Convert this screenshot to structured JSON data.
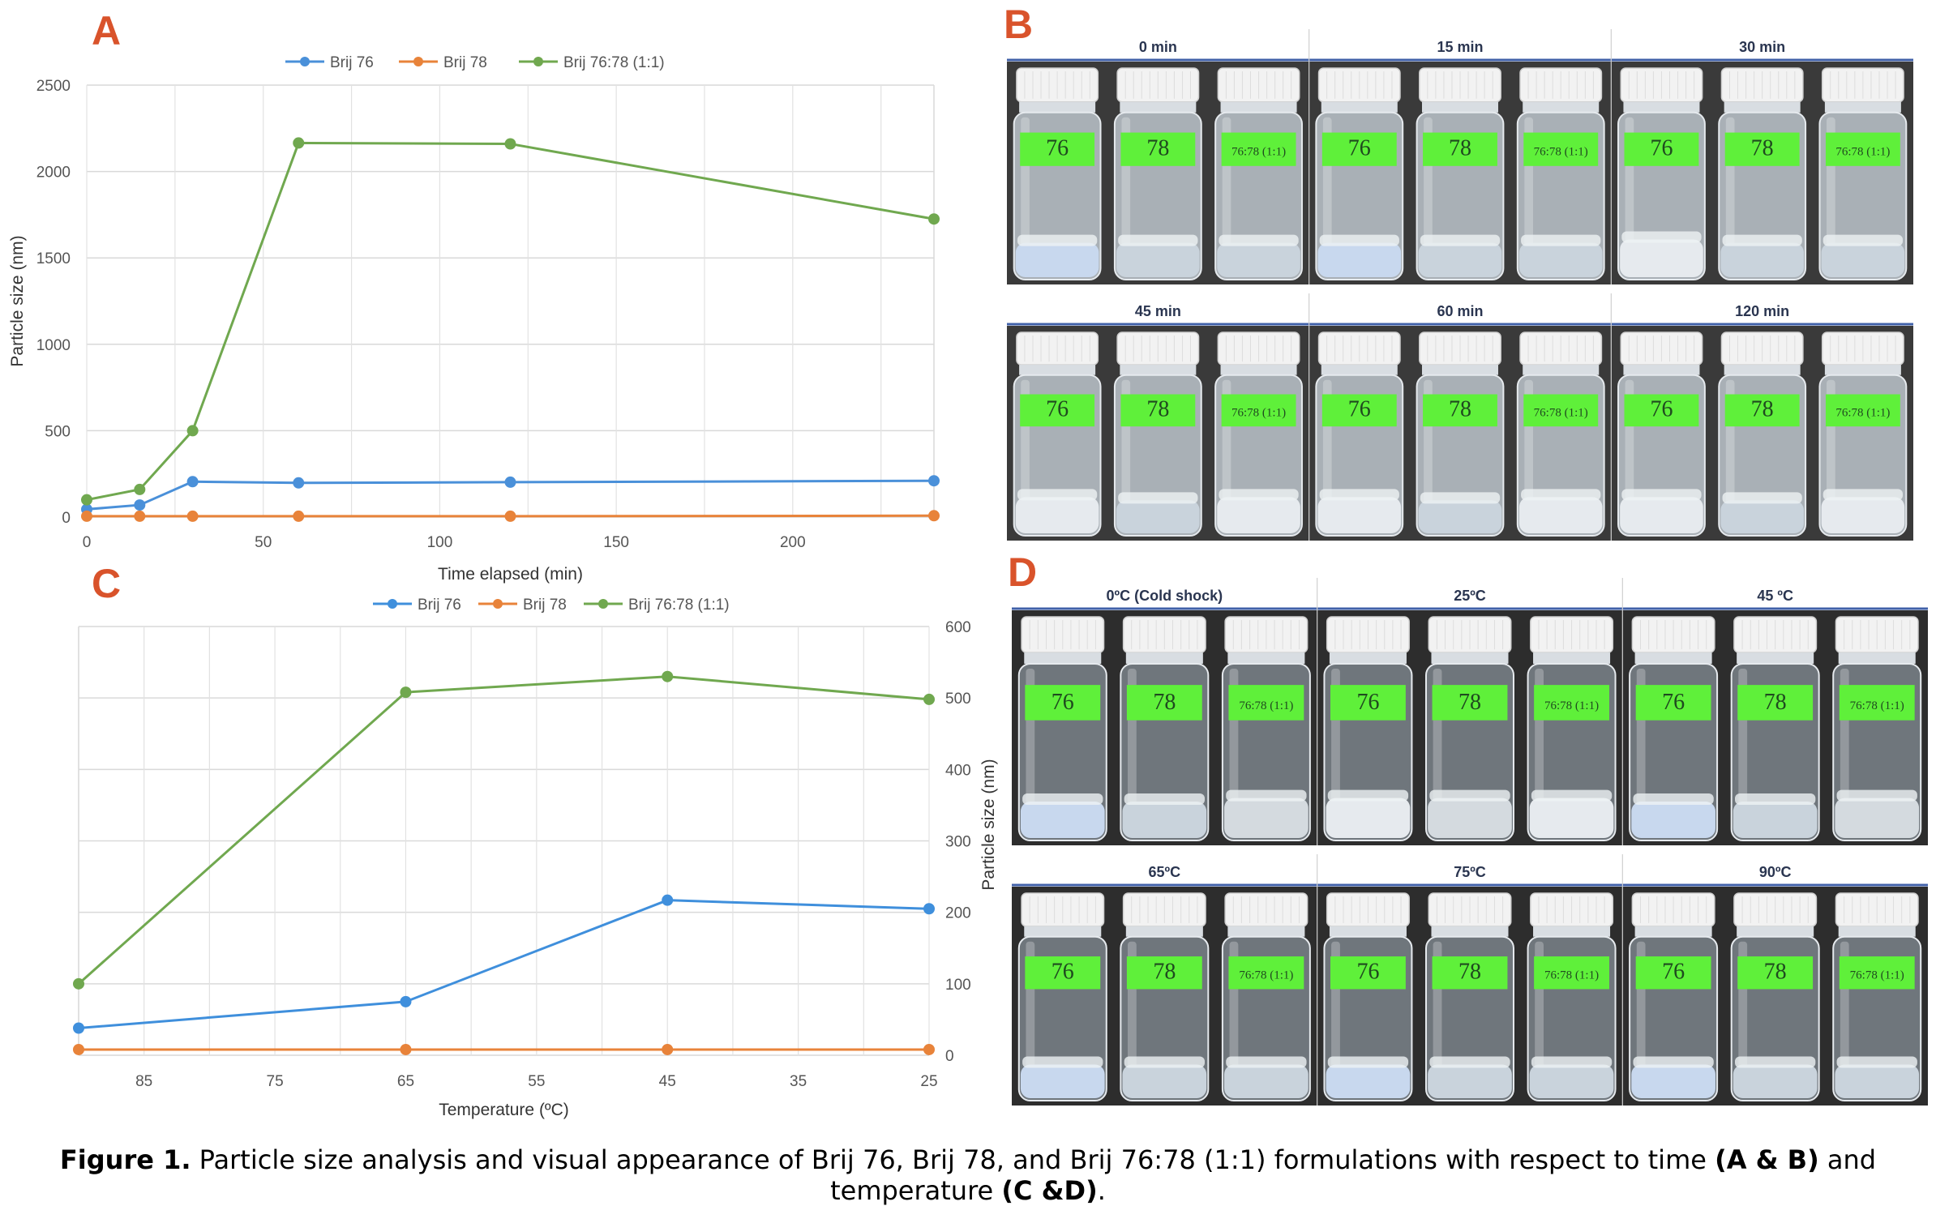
{
  "panels": {
    "a": "A",
    "b": "B",
    "c": "C",
    "d": "D"
  },
  "colors": {
    "brij76": "#4a90d9",
    "brij78": "#e8833a",
    "mix": "#70a84f",
    "label_tape": "#5ff03a",
    "cap": "#f2f2f2"
  },
  "chart_data": [
    {
      "type": "line",
      "xlabel": "Time elapsed (min)",
      "ylabel": "Particle size (nm)",
      "xlim": [
        0,
        240
      ],
      "ylim": [
        0,
        2500
      ],
      "xticks": [
        "0",
        "50",
        "100",
        "150",
        "200"
      ],
      "yticks": [
        "0",
        "500",
        "1000",
        "1500",
        "2000",
        "2500"
      ],
      "legend": "top-center",
      "grid": true,
      "series": [
        {
          "name": "Brij 76",
          "x": [
            0,
            15,
            30,
            60,
            120,
            240
          ],
          "y": [
            45,
            70,
            205,
            198,
            202,
            210
          ]
        },
        {
          "name": "Brij 78",
          "x": [
            0,
            15,
            30,
            60,
            120,
            240
          ],
          "y": [
            5,
            5,
            5,
            5,
            5,
            8
          ]
        },
        {
          "name": "Brij 76:78 (1:1)",
          "x": [
            0,
            15,
            30,
            60,
            120,
            240
          ],
          "y": [
            100,
            160,
            500,
            2165,
            2160,
            1725
          ]
        }
      ]
    },
    {
      "type": "line",
      "xlabel": "Temperature (ºC)",
      "ylabel": "Particle size (nm)",
      "xlim": [
        90,
        25
      ],
      "ylim": [
        0,
        600
      ],
      "xticks": [
        "85",
        "75",
        "65",
        "55",
        "45",
        "35",
        "25"
      ],
      "yticks": [
        "0",
        "100",
        "200",
        "300",
        "400",
        "500",
        "600"
      ],
      "legend": "top-center",
      "grid": true,
      "series": [
        {
          "name": "Brij 76",
          "x": [
            90,
            65,
            45,
            25
          ],
          "y": [
            38,
            75,
            217,
            205
          ]
        },
        {
          "name": "Brij 78",
          "x": [
            90,
            65,
            45,
            25
          ],
          "y": [
            8,
            8,
            8,
            8
          ]
        },
        {
          "name": "Brij 76:78 (1:1)",
          "x": [
            90,
            65,
            45,
            25
          ],
          "y": [
            100,
            508,
            530,
            498
          ]
        }
      ]
    }
  ],
  "photos_b": [
    {
      "label": "0 min"
    },
    {
      "label": "15 min"
    },
    {
      "label": "30 min"
    },
    {
      "label": "45 min"
    },
    {
      "label": "60 min"
    },
    {
      "label": "120 min"
    }
  ],
  "photos_d": [
    {
      "label": "0ºC (Cold shock)"
    },
    {
      "label": "25ºC"
    },
    {
      "label": "45 ºC"
    },
    {
      "label": "65ºC"
    },
    {
      "label": "75ºC"
    },
    {
      "label": "90ºC"
    }
  ],
  "vial_labels": [
    "76",
    "78",
    "76:78 (1:1)"
  ],
  "caption": {
    "figure": "Figure 1.",
    "text1": " Particle size analysis and visual appearance of Brij 76, Brij 78, and Brij 76:78 (1:1) formulations with respect to time ",
    "bold1": "(A & B)",
    "text2": " and temperature ",
    "bold2": "(C &D)",
    "text3": "."
  }
}
